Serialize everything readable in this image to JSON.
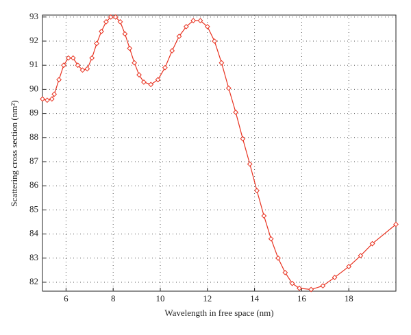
{
  "chart_data": {
    "type": "line",
    "x_label": "Wavelength in free space (nm)",
    "y_label": "Scattering cross section (nm²)",
    "xlim": [
      5,
      20
    ],
    "ylim": [
      81.63,
      93.08
    ],
    "xticks": [
      6,
      8,
      10,
      12,
      14,
      16,
      18
    ],
    "yticks": [
      82,
      83,
      84,
      85,
      86,
      87,
      88,
      89,
      90,
      91,
      92,
      93
    ],
    "grid": true,
    "series": [
      {
        "color": "#e8311f",
        "x": [
          5.0,
          5.2,
          5.4,
          5.5,
          5.7,
          5.9,
          6.1,
          6.3,
          6.5,
          6.7,
          6.9,
          7.1,
          7.3,
          7.5,
          7.7,
          7.9,
          8.1,
          8.3,
          8.5,
          8.7,
          8.9,
          9.1,
          9.3,
          9.6,
          9.9,
          10.2,
          10.5,
          10.8,
          11.1,
          11.4,
          11.7,
          12.0,
          12.3,
          12.6,
          12.9,
          13.2,
          13.5,
          13.8,
          14.1,
          14.4,
          14.7,
          15.0,
          15.3,
          15.6,
          15.9,
          16.4,
          16.9,
          17.4,
          18.0,
          18.5,
          19.0,
          20.0
        ],
        "values": [
          89.6,
          89.55,
          89.6,
          89.8,
          90.4,
          91.0,
          91.3,
          91.3,
          91.0,
          90.8,
          90.85,
          91.3,
          91.9,
          92.4,
          92.8,
          93.0,
          93.0,
          92.8,
          92.3,
          91.7,
          91.1,
          90.6,
          90.3,
          90.2,
          90.4,
          90.9,
          91.6,
          92.2,
          92.6,
          92.85,
          92.85,
          92.6,
          92.0,
          91.1,
          90.05,
          89.05,
          87.95,
          86.9,
          85.8,
          84.75,
          83.8,
          83.0,
          82.4,
          81.95,
          81.75,
          81.7,
          81.85,
          82.2,
          82.65,
          83.1,
          83.6,
          84.4
        ]
      }
    ]
  }
}
